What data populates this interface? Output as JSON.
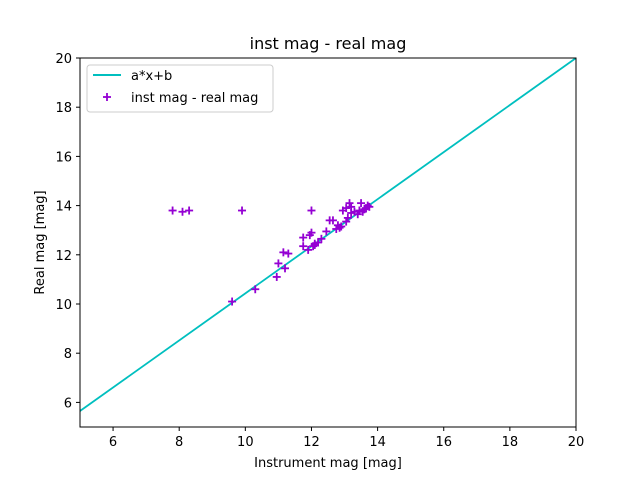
{
  "chart_data": {
    "type": "scatter",
    "title": "inst mag - real mag",
    "xlabel": "Instrument mag [mag]",
    "ylabel": "Real mag [mag]",
    "xlim": [
      5,
      20
    ],
    "ylim": [
      5,
      20
    ],
    "xticks": [
      6,
      8,
      10,
      12,
      14,
      16,
      18,
      20
    ],
    "yticks": [
      6,
      8,
      10,
      12,
      14,
      16,
      18,
      20
    ],
    "grid": false,
    "legend": {
      "position": "top-left",
      "entries": [
        "a*x+b",
        "inst mag - real mag"
      ]
    },
    "fit_line": {
      "name": "a*x+b",
      "color": "#00bfbf",
      "x": [
        5.0,
        20.0
      ],
      "y": [
        5.65,
        20.0
      ]
    },
    "series": [
      {
        "name": "inst mag - real mag",
        "color": "#9400d3",
        "marker": "+",
        "points": [
          [
            7.8,
            13.8
          ],
          [
            8.1,
            13.75
          ],
          [
            8.3,
            13.8
          ],
          [
            9.9,
            13.8
          ],
          [
            9.6,
            10.1
          ],
          [
            10.3,
            10.6
          ],
          [
            10.95,
            11.1
          ],
          [
            11.0,
            11.65
          ],
          [
            11.15,
            12.1
          ],
          [
            11.2,
            11.45
          ],
          [
            11.3,
            12.05
          ],
          [
            11.75,
            12.35
          ],
          [
            11.75,
            12.7
          ],
          [
            11.9,
            12.2
          ],
          [
            11.95,
            12.8
          ],
          [
            12.0,
            12.9
          ],
          [
            12.0,
            13.8
          ],
          [
            12.05,
            12.35
          ],
          [
            12.1,
            12.4
          ],
          [
            12.2,
            12.5
          ],
          [
            12.3,
            12.65
          ],
          [
            12.45,
            12.95
          ],
          [
            12.55,
            13.4
          ],
          [
            12.65,
            13.4
          ],
          [
            12.75,
            13.05
          ],
          [
            12.8,
            13.2
          ],
          [
            12.85,
            13.1
          ],
          [
            12.95,
            13.8
          ],
          [
            13.05,
            13.9
          ],
          [
            13.05,
            13.35
          ],
          [
            13.1,
            13.5
          ],
          [
            13.15,
            14.1
          ],
          [
            13.2,
            13.7
          ],
          [
            13.3,
            13.75
          ],
          [
            13.4,
            13.65
          ],
          [
            13.45,
            13.8
          ],
          [
            13.5,
            14.1
          ],
          [
            13.55,
            13.75
          ],
          [
            13.6,
            13.85
          ],
          [
            13.65,
            13.9
          ],
          [
            13.7,
            14.0
          ],
          [
            13.75,
            13.95
          ],
          [
            13.2,
            13.95
          ],
          [
            12.1,
            12.45
          ],
          [
            12.9,
            13.15
          ]
        ]
      }
    ]
  }
}
